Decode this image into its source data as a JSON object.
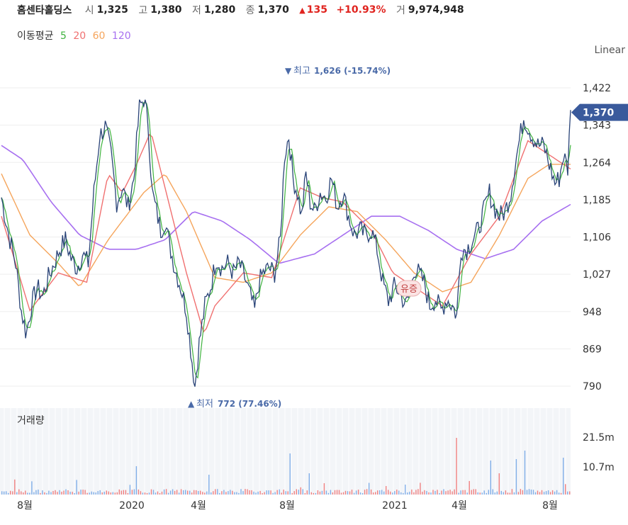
{
  "header": {
    "name": "홈센타홀딩스",
    "open_label": "시",
    "open": "1,325",
    "high_label": "고",
    "high": "1,380",
    "low_label": "저",
    "low": "1,280",
    "close_label": "종",
    "close": "1,370",
    "change": "135",
    "change_pct": "+10.93%",
    "volume_label": "거",
    "volume": "9,974,948"
  },
  "ma_legend": {
    "label": "이동평균",
    "items": [
      {
        "period": "5",
        "color": "#3fb33f"
      },
      {
        "period": "20",
        "color": "#f07070"
      },
      {
        "period": "60",
        "color": "#f5a55c"
      },
      {
        "period": "120",
        "color": "#a770f0"
      }
    ]
  },
  "chart_data": {
    "type": "line",
    "scale_label": "Linear",
    "price_axis": {
      "ticks": [
        "1,422",
        "1,343",
        "1,264",
        "1,185",
        "1,106",
        "1,027",
        "948",
        "869",
        "790"
      ],
      "min": 790,
      "max": 1422
    },
    "current_price_label": "1,370",
    "x_tick_labels": [
      "8월",
      "2020",
      "4월",
      "8월",
      "2021",
      "4월",
      "8월"
    ],
    "annotations": {
      "high_label": "최고",
      "high_value": "1,626 (-15.74%)",
      "low_label": "최저",
      "low_value": "772 (77.46%)",
      "event_label": "유증"
    },
    "volume_panel": {
      "title": "거래량",
      "ticks": [
        "21.5m",
        "10.7m"
      ]
    },
    "colors": {
      "price": "#2a4478",
      "ma5": "#3fb33f",
      "ma20": "#f07070",
      "ma60": "#f5a55c",
      "ma120": "#a770f0",
      "vol_up": "#f08080",
      "vol_down": "#80aee8"
    },
    "price_keypoints": [
      [
        0,
        1190
      ],
      [
        5,
        1150
      ],
      [
        12,
        1100
      ],
      [
        20,
        1050
      ],
      [
        28,
        950
      ],
      [
        35,
        900
      ],
      [
        42,
        960
      ],
      [
        50,
        1000
      ],
      [
        58,
        980
      ],
      [
        66,
        1020
      ],
      [
        74,
        1050
      ],
      [
        82,
        1080
      ],
      [
        90,
        1100
      ],
      [
        98,
        1060
      ],
      [
        106,
        1040
      ],
      [
        114,
        1070
      ],
      [
        122,
        1050
      ],
      [
        130,
        1200
      ],
      [
        138,
        1320
      ],
      [
        146,
        1340
      ],
      [
        154,
        1280
      ],
      [
        162,
        1180
      ],
      [
        170,
        1210
      ],
      [
        178,
        1170
      ],
      [
        186,
        1230
      ],
      [
        194,
        1380
      ],
      [
        200,
        1400
      ],
      [
        206,
        1350
      ],
      [
        212,
        1200
      ],
      [
        218,
        1160
      ],
      [
        224,
        1120
      ],
      [
        230,
        1140
      ],
      [
        236,
        1090
      ],
      [
        244,
        1040
      ],
      [
        252,
        1000
      ],
      [
        260,
        950
      ],
      [
        266,
        870
      ],
      [
        272,
        790
      ],
      [
        278,
        880
      ],
      [
        286,
        960
      ],
      [
        294,
        1000
      ],
      [
        302,
        1060
      ],
      [
        310,
        1040
      ],
      [
        318,
        1050
      ],
      [
        326,
        1030
      ],
      [
        334,
        1050
      ],
      [
        342,
        1020
      ],
      [
        350,
        980
      ],
      [
        356,
        950
      ],
      [
        362,
        1010
      ],
      [
        368,
        1030
      ],
      [
        376,
        1040
      ],
      [
        384,
        1030
      ],
      [
        392,
        1100
      ],
      [
        398,
        1280
      ],
      [
        404,
        1320
      ],
      [
        410,
        1230
      ],
      [
        416,
        1200
      ],
      [
        422,
        1150
      ],
      [
        428,
        1240
      ],
      [
        434,
        1180
      ],
      [
        440,
        1160
      ],
      [
        448,
        1200
      ],
      [
        456,
        1190
      ],
      [
        464,
        1230
      ],
      [
        472,
        1170
      ],
      [
        480,
        1200
      ],
      [
        488,
        1150
      ],
      [
        496,
        1110
      ],
      [
        504,
        1120
      ],
      [
        512,
        1110
      ],
      [
        520,
        1120
      ],
      [
        528,
        1080
      ],
      [
        536,
        1010
      ],
      [
        544,
        970
      ],
      [
        552,
        1000
      ],
      [
        560,
        990
      ],
      [
        568,
        960
      ],
      [
        574,
        985
      ],
      [
        580,
        1040
      ],
      [
        586,
        1030
      ],
      [
        594,
        1010
      ],
      [
        602,
        960
      ],
      [
        610,
        975
      ],
      [
        618,
        950
      ],
      [
        626,
        975
      ],
      [
        634,
        960
      ],
      [
        640,
        940
      ],
      [
        646,
        1080
      ],
      [
        654,
        1080
      ],
      [
        662,
        1100
      ],
      [
        670,
        1120
      ],
      [
        678,
        1160
      ],
      [
        686,
        1200
      ],
      [
        692,
        1170
      ],
      [
        700,
        1150
      ],
      [
        708,
        1160
      ],
      [
        716,
        1200
      ],
      [
        722,
        1260
      ],
      [
        728,
        1310
      ],
      [
        734,
        1360
      ],
      [
        740,
        1340
      ],
      [
        746,
        1320
      ],
      [
        754,
        1300
      ],
      [
        762,
        1300
      ],
      [
        770,
        1260
      ],
      [
        778,
        1220
      ],
      [
        784,
        1230
      ],
      [
        790,
        1280
      ],
      [
        796,
        1250
      ],
      [
        800,
        1375
      ]
    ],
    "ma20_keypoints": [
      [
        0,
        1150
      ],
      [
        40,
        950
      ],
      [
        80,
        1030
      ],
      [
        120,
        1010
      ],
      [
        150,
        1240
      ],
      [
        170,
        1200
      ],
      [
        190,
        1260
      ],
      [
        210,
        1330
      ],
      [
        230,
        1210
      ],
      [
        260,
        1030
      ],
      [
        285,
        900
      ],
      [
        300,
        960
      ],
      [
        340,
        1030
      ],
      [
        380,
        1020
      ],
      [
        420,
        1210
      ],
      [
        450,
        1190
      ],
      [
        480,
        1180
      ],
      [
        520,
        1120
      ],
      [
        550,
        1030
      ],
      [
        580,
        1000
      ],
      [
        620,
        960
      ],
      [
        660,
        1070
      ],
      [
        700,
        1150
      ],
      [
        740,
        1310
      ],
      [
        770,
        1280
      ],
      [
        800,
        1250
      ]
    ],
    "ma60_keypoints": [
      [
        0,
        1240
      ],
      [
        40,
        1110
      ],
      [
        80,
        1050
      ],
      [
        110,
        1000
      ],
      [
        150,
        1100
      ],
      [
        180,
        1160
      ],
      [
        200,
        1200
      ],
      [
        230,
        1240
      ],
      [
        260,
        1160
      ],
      [
        300,
        1020
      ],
      [
        340,
        1010
      ],
      [
        380,
        1030
      ],
      [
        420,
        1110
      ],
      [
        460,
        1170
      ],
      [
        500,
        1160
      ],
      [
        540,
        1100
      ],
      [
        580,
        1030
      ],
      [
        620,
        990
      ],
      [
        660,
        1010
      ],
      [
        700,
        1110
      ],
      [
        740,
        1230
      ],
      [
        770,
        1260
      ],
      [
        800,
        1260
      ]
    ],
    "ma120_keypoints": [
      [
        0,
        1300
      ],
      [
        30,
        1270
      ],
      [
        70,
        1180
      ],
      [
        110,
        1110
      ],
      [
        150,
        1080
      ],
      [
        190,
        1080
      ],
      [
        230,
        1100
      ],
      [
        270,
        1160
      ],
      [
        310,
        1140
      ],
      [
        350,
        1100
      ],
      [
        390,
        1050
      ],
      [
        440,
        1070
      ],
      [
        480,
        1110
      ],
      [
        520,
        1150
      ],
      [
        560,
        1150
      ],
      [
        600,
        1120
      ],
      [
        640,
        1080
      ],
      [
        680,
        1060
      ],
      [
        720,
        1080
      ],
      [
        760,
        1140
      ],
      [
        800,
        1175
      ]
    ]
  }
}
